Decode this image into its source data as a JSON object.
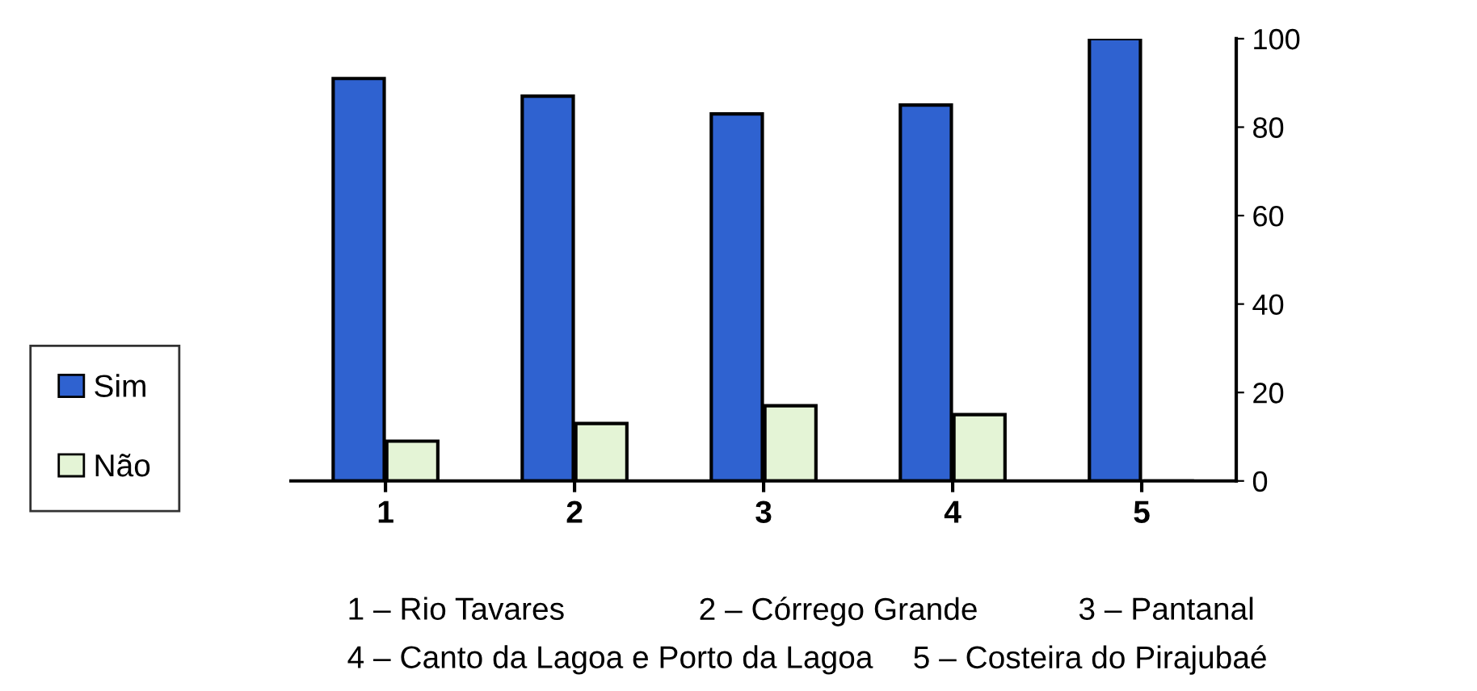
{
  "chart_data": {
    "type": "bar",
    "categories": [
      "1",
      "2",
      "3",
      "4",
      "5"
    ],
    "series": [
      {
        "name": "Sim",
        "color": "#2f62d0",
        "values": [
          91,
          87,
          83,
          85,
          100
        ]
      },
      {
        "name": "Não",
        "color": "#e4f4d6",
        "values": [
          9,
          13,
          17,
          15,
          0
        ]
      }
    ],
    "ylim": [
      0,
      100
    ],
    "yticks": [
      0,
      20,
      40,
      60,
      80,
      100
    ],
    "grid": false,
    "legend": "left",
    "annotations": [
      "1 – Rio Tavares",
      "2 – Córrego Grande",
      "3 – Pantanal",
      "4 – Canto da Lagoa e Porto da Lagoa",
      "5 – Costeira do Pirajubaé"
    ]
  }
}
